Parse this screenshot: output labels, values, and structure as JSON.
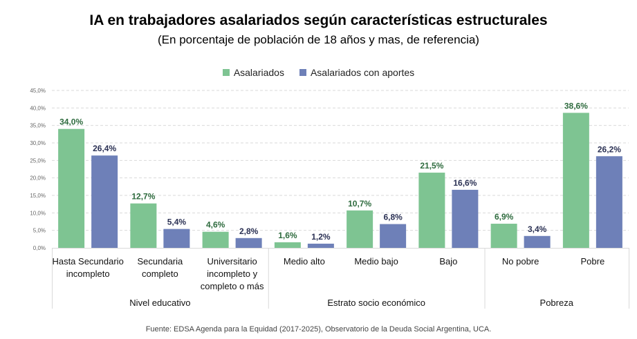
{
  "title": "IA en trabajadores asalariados según características estructurales",
  "subtitle": "(En porcentaje de población de 18 años y mas, de referencia)",
  "source": "Fuente: EDSA Agenda para la Equidad (2017-2025), Observatorio de la Deuda Social Argentina, UCA.",
  "colors": {
    "series1": "#7EC492",
    "series2": "#6E80B8",
    "label1": "#2E6B3E",
    "label2": "#2B3154",
    "grid": "#D9D9D9",
    "separator": "#D9D9D9"
  },
  "chart_data": {
    "type": "bar",
    "title": "IA en trabajadores asalariados según características estructurales",
    "subtitle": "(En porcentaje de población de 18 años y mas, de referencia)",
    "xlabel": "",
    "ylabel": "",
    "ylim": [
      0,
      45
    ],
    "yticks": [
      0,
      5,
      10,
      15,
      20,
      25,
      30,
      35,
      40,
      45
    ],
    "ytick_labels": [
      "0,0%",
      "5,0%",
      "10,0%",
      "15,0%",
      "20,0%",
      "25,0%",
      "30,0%",
      "35,0%",
      "40,0%",
      "45,0%"
    ],
    "grid": true,
    "legend_position": "top-center",
    "categories": [
      [
        "Hasta Secundario",
        "incompleto"
      ],
      [
        "Secundaria",
        "completo"
      ],
      [
        "Universitario",
        "incompleto y",
        "completo o más"
      ],
      [
        "Medio alto"
      ],
      [
        "Medio bajo"
      ],
      [
        "Bajo"
      ],
      [
        "No pobre"
      ],
      [
        "Pobre"
      ]
    ],
    "groups": [
      {
        "label": "Nivel educativo",
        "start": 0,
        "count": 3
      },
      {
        "label": "Estrato socio económico",
        "start": 3,
        "count": 3
      },
      {
        "label": "Pobreza",
        "start": 6,
        "count": 2
      }
    ],
    "series": [
      {
        "name": "Asalariados",
        "values": [
          34.0,
          12.7,
          4.6,
          1.6,
          10.7,
          21.5,
          6.9,
          38.6
        ],
        "labels": [
          "34,0%",
          "12,7%",
          "4,6%",
          "1,6%",
          "10,7%",
          "21,5%",
          "6,9%",
          "38,6%"
        ]
      },
      {
        "name": "Asalariados con aportes",
        "values": [
          26.4,
          5.4,
          2.8,
          1.2,
          6.8,
          16.6,
          3.4,
          26.2
        ],
        "labels": [
          "26,4%",
          "5,4%",
          "2,8%",
          "1,2%",
          "6,8%",
          "16,6%",
          "3,4%",
          "26,2%"
        ]
      }
    ]
  }
}
